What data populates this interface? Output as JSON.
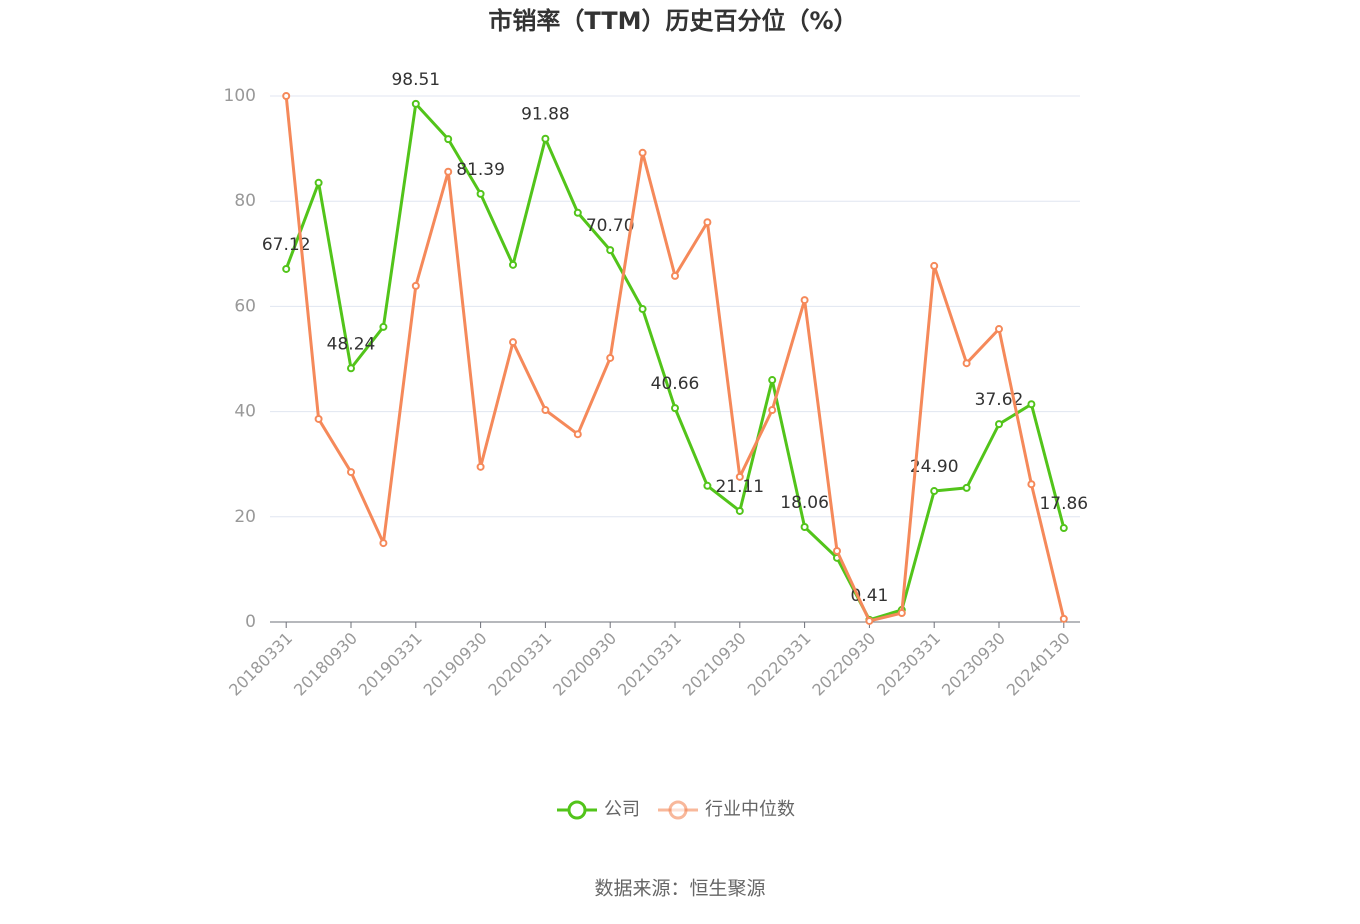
{
  "chart_data": {
    "type": "line",
    "title": "市销率（TTM）历史百分位（%）",
    "categories": [
      "20180331",
      null,
      "20180930",
      null,
      "20190331",
      null,
      "20190930",
      null,
      "20200331",
      null,
      "20200930",
      null,
      "20210331",
      null,
      "20210930",
      null,
      "20220331",
      null,
      "20220930",
      null,
      "20230331",
      null,
      "20230930",
      null,
      "20240130"
    ],
    "series": [
      {
        "name": "公司",
        "color": "#52c41a",
        "values": [
          67.12,
          83.5,
          48.24,
          56.1,
          98.51,
          91.8,
          81.39,
          67.9,
          91.88,
          77.8,
          70.7,
          59.5,
          40.66,
          25.9,
          21.11,
          46.0,
          18.06,
          12.2,
          0.41,
          2.3,
          24.9,
          25.5,
          37.62,
          41.4,
          17.86
        ],
        "value_labels": [
          "67.12",
          null,
          "48.24",
          null,
          "98.51",
          null,
          "81.39",
          null,
          "91.88",
          null,
          "70.70",
          null,
          "40.66",
          null,
          "21.11",
          null,
          "18.06",
          null,
          "0.41",
          null,
          "24.90",
          null,
          "37.62",
          null,
          "17.86"
        ]
      },
      {
        "name": "行业中位数",
        "color": "#f5895a",
        "values": [
          100,
          38.6,
          28.5,
          15.0,
          63.9,
          85.6,
          29.5,
          53.2,
          40.3,
          35.7,
          50.2,
          89.2,
          65.8,
          76.0,
          27.6,
          40.3,
          61.2,
          13.5,
          0.2,
          1.7,
          67.7,
          49.2,
          55.7,
          26.2,
          0.6
        ]
      }
    ],
    "ylim": [
      0,
      100
    ],
    "yticks": [
      0,
      20,
      40,
      60,
      80,
      100
    ],
    "grid": true,
    "source": "数据来源：恒生聚源"
  }
}
